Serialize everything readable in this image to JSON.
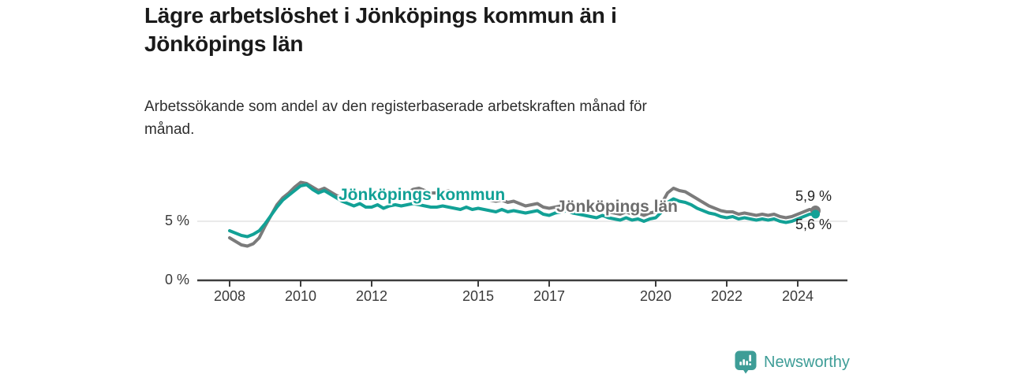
{
  "header": {
    "title": "Lägre arbetslöshet i Jönköpings kommun än i\nJönköpings län",
    "subtitle": "Arbetssökande som andel av den registerbaserade arbetskraften månad för\nmånad."
  },
  "chart_data": {
    "type": "line",
    "title": "Lägre arbetslöshet i Jönköpings kommun än i Jönköpings län",
    "subtitle": "Arbetssökande som andel av den registerbaserade arbetskraften månad för månad.",
    "unit": "%",
    "grid": "horizontal-only",
    "legend_position": "inline-labels-on-chart",
    "points_per_year": 6,
    "x_axis": {
      "start": 2008,
      "end": 2024.5,
      "tick_values": [
        2008,
        2010,
        2012,
        2015,
        2017,
        2020,
        2022,
        2024
      ],
      "tick_labels": [
        "2008",
        "2010",
        "2012",
        "2015",
        "2017",
        "2020",
        "2022",
        "2024"
      ]
    },
    "y_axis": {
      "tick_values": [
        0,
        5
      ],
      "tick_labels": [
        "0 %",
        "5 %"
      ],
      "ylim": [
        0,
        9
      ]
    },
    "series": [
      {
        "name": "Jönköpings län",
        "color": "#7b7b7b",
        "label_color": "#6d6d6d",
        "end_value": 5.9,
        "end_label": "5,9 %",
        "values": [
          3.6,
          3.3,
          3.0,
          2.9,
          3.1,
          3.6,
          4.6,
          5.5,
          6.4,
          7.0,
          7.4,
          7.9,
          8.3,
          8.2,
          7.9,
          7.6,
          7.8,
          7.5,
          7.2,
          7.0,
          6.9,
          6.8,
          7.0,
          6.8,
          7.0,
          7.1,
          6.9,
          7.1,
          7.3,
          7.1,
          7.4,
          7.7,
          7.8,
          7.6,
          7.4,
          7.4,
          7.4,
          7.6,
          7.3,
          7.1,
          7.0,
          6.9,
          7.0,
          6.9,
          6.8,
          6.7,
          6.8,
          6.6,
          6.7,
          6.5,
          6.3,
          6.4,
          6.5,
          6.2,
          6.1,
          6.2,
          6.3,
          6.4,
          6.2,
          6.1,
          6.0,
          5.9,
          5.8,
          6.0,
          5.8,
          5.7,
          5.6,
          5.8,
          5.6,
          5.7,
          5.5,
          5.7,
          5.8,
          6.5,
          7.4,
          7.8,
          7.6,
          7.5,
          7.2,
          6.9,
          6.6,
          6.3,
          6.1,
          5.9,
          5.8,
          5.8,
          5.6,
          5.7,
          5.6,
          5.5,
          5.6,
          5.5,
          5.6,
          5.4,
          5.3,
          5.4,
          5.6,
          5.8,
          6.0,
          5.9
        ]
      },
      {
        "name": "Jönköpings kommun",
        "color": "#12a196",
        "label_color": "#12a196",
        "end_value": 5.6,
        "end_label": "5,6 %",
        "values": [
          4.2,
          4.0,
          3.8,
          3.7,
          3.9,
          4.2,
          4.8,
          5.5,
          6.2,
          6.8,
          7.2,
          7.6,
          8.0,
          8.1,
          7.7,
          7.4,
          7.6,
          7.3,
          7.0,
          6.7,
          6.5,
          6.3,
          6.5,
          6.2,
          6.2,
          6.4,
          6.1,
          6.3,
          6.4,
          6.3,
          6.4,
          6.5,
          6.4,
          6.3,
          6.2,
          6.2,
          6.3,
          6.2,
          6.1,
          6.0,
          6.2,
          6.0,
          6.1,
          6.0,
          5.9,
          5.8,
          6.0,
          5.8,
          5.9,
          5.8,
          5.7,
          5.8,
          5.9,
          5.6,
          5.5,
          5.7,
          5.8,
          5.9,
          5.7,
          5.6,
          5.5,
          5.4,
          5.3,
          5.5,
          5.3,
          5.2,
          5.1,
          5.3,
          5.1,
          5.2,
          5.0,
          5.2,
          5.3,
          5.8,
          6.6,
          6.9,
          6.7,
          6.6,
          6.4,
          6.1,
          5.9,
          5.7,
          5.6,
          5.4,
          5.3,
          5.4,
          5.2,
          5.3,
          5.2,
          5.1,
          5.2,
          5.1,
          5.2,
          5.0,
          4.9,
          5.0,
          5.2,
          5.4,
          5.6,
          5.6
        ]
      }
    ]
  },
  "footer": {
    "brand": "Newsworthy",
    "brand_color": "#3e9d97"
  },
  "colors": {
    "background": "#ffffff",
    "axis": "#3d3d3d",
    "gridline": "#dedede",
    "title_text": "#1a1a1a",
    "subtitle_text": "#2e2e2e",
    "tick_text": "#3a3a3a"
  }
}
